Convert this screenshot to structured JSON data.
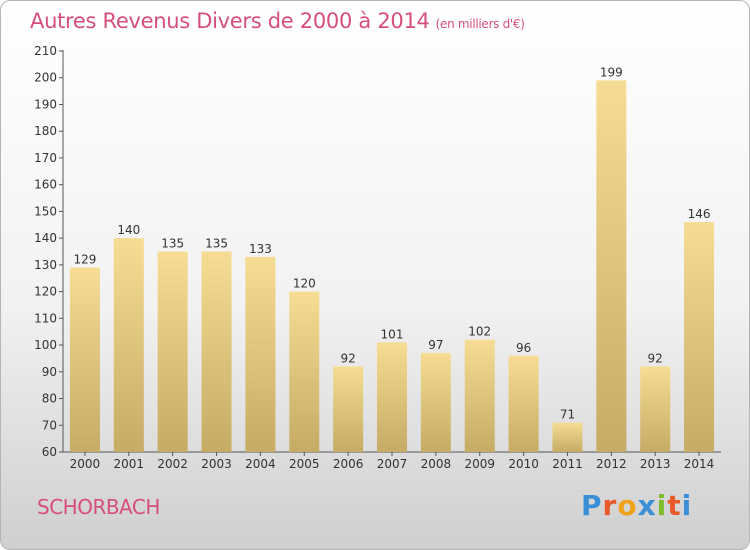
{
  "header": {
    "title": "Autres Revenus Divers de 2000 à 2014",
    "unit": "(en milliers d'€)"
  },
  "footer": {
    "town": "SCHORBACH",
    "logo": "Proxiti"
  },
  "colors": {
    "title": "#d64f7a",
    "bar_light": "#f6dd93",
    "bar_dark": "#c5ab64",
    "logo_letters": [
      "#3b8fd6",
      "#e85a2a",
      "#f0a21b",
      "#3b8fd6",
      "#7dbb2c",
      "#e85a2a",
      "#3b8fd6"
    ]
  },
  "chart_data": {
    "type": "bar",
    "categories": [
      "2000",
      "2001",
      "2002",
      "2003",
      "2004",
      "2005",
      "2006",
      "2007",
      "2008",
      "2009",
      "2010",
      "2011",
      "2012",
      "2013",
      "2014"
    ],
    "values": [
      129,
      140,
      135,
      135,
      133,
      120,
      92,
      101,
      97,
      102,
      96,
      71,
      199,
      92,
      146
    ],
    "ylim": [
      60,
      210
    ],
    "yticks": [
      60,
      70,
      80,
      90,
      100,
      110,
      120,
      130,
      140,
      150,
      160,
      170,
      180,
      190,
      200,
      210
    ],
    "grid": false,
    "data_labels": true
  }
}
